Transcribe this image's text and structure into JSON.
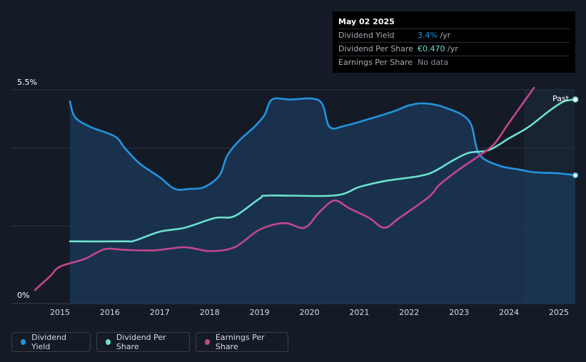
{
  "tooltip": {
    "date": "May 02 2025",
    "rows": [
      {
        "label": "Dividend Yield",
        "value": "3.4%",
        "unit": " /yr",
        "color": "#2394df"
      },
      {
        "label": "Dividend Per Share",
        "value": "€0.470",
        "unit": " /yr",
        "color": "#6de0d0"
      },
      {
        "label": "Earnings Per Share",
        "value": "No data",
        "unit": "",
        "color": "#8a919b"
      }
    ]
  },
  "past_label": "Past",
  "legend": [
    {
      "label": "Dividend Yield",
      "color": "#2394df"
    },
    {
      "label": "Dividend Per Share",
      "color": "#6de0d0"
    },
    {
      "label": "Earnings Per Share",
      "color": "#c3478c"
    }
  ],
  "chart_data": {
    "type": "line",
    "x_ticks": [
      "2015",
      "2016",
      "2017",
      "2018",
      "2019",
      "2020",
      "2021",
      "2022",
      "2023",
      "2024",
      "2025"
    ],
    "y_ticks": [
      "5.5%",
      "0%"
    ],
    "ylim": [
      0,
      5.5
    ],
    "xlim": [
      2014.5,
      2025.33
    ],
    "grid": true,
    "series": [
      {
        "name": "Dividend Yield",
        "color": "#2394df",
        "filled": true,
        "points": [
          [
            2015.2,
            5.2
          ],
          [
            2015.3,
            4.8
          ],
          [
            2015.6,
            4.55
          ],
          [
            2016.1,
            4.3
          ],
          [
            2016.3,
            4.0
          ],
          [
            2016.6,
            3.6
          ],
          [
            2017.0,
            3.25
          ],
          [
            2017.3,
            2.95
          ],
          [
            2017.6,
            2.95
          ],
          [
            2017.9,
            3.0
          ],
          [
            2018.2,
            3.3
          ],
          [
            2018.35,
            3.8
          ],
          [
            2018.6,
            4.2
          ],
          [
            2018.9,
            4.55
          ],
          [
            2019.1,
            4.85
          ],
          [
            2019.25,
            5.25
          ],
          [
            2019.6,
            5.25
          ],
          [
            2020.2,
            5.22
          ],
          [
            2020.4,
            4.55
          ],
          [
            2020.7,
            4.57
          ],
          [
            2021.2,
            4.75
          ],
          [
            2021.7,
            4.95
          ],
          [
            2022.0,
            5.1
          ],
          [
            2022.3,
            5.15
          ],
          [
            2022.7,
            5.05
          ],
          [
            2023.2,
            4.7
          ],
          [
            2023.4,
            3.85
          ],
          [
            2023.8,
            3.55
          ],
          [
            2024.2,
            3.45
          ],
          [
            2024.5,
            3.38
          ],
          [
            2025.0,
            3.35
          ],
          [
            2025.33,
            3.3
          ]
        ]
      },
      {
        "name": "Dividend Per Share",
        "color": "#6de0d0",
        "filled": false,
        "points": [
          [
            2015.2,
            1.6
          ],
          [
            2016.3,
            1.6
          ],
          [
            2016.5,
            1.62
          ],
          [
            2017.0,
            1.85
          ],
          [
            2017.5,
            1.95
          ],
          [
            2018.1,
            2.2
          ],
          [
            2018.5,
            2.25
          ],
          [
            2019.0,
            2.7
          ],
          [
            2019.2,
            2.78
          ],
          [
            2020.5,
            2.78
          ],
          [
            2021.0,
            3.0
          ],
          [
            2021.5,
            3.15
          ],
          [
            2022.2,
            3.28
          ],
          [
            2022.5,
            3.4
          ],
          [
            2022.9,
            3.7
          ],
          [
            2023.2,
            3.88
          ],
          [
            2023.6,
            3.95
          ],
          [
            2024.0,
            4.25
          ],
          [
            2024.4,
            4.55
          ],
          [
            2024.8,
            4.95
          ],
          [
            2025.1,
            5.2
          ],
          [
            2025.33,
            5.25
          ]
        ]
      },
      {
        "name": "Earnings Per Share",
        "color": "#c3478c",
        "filled": false,
        "points": [
          [
            2014.5,
            0.35
          ],
          [
            2014.8,
            0.7
          ],
          [
            2015.0,
            0.95
          ],
          [
            2015.5,
            1.15
          ],
          [
            2015.9,
            1.4
          ],
          [
            2016.3,
            1.38
          ],
          [
            2016.9,
            1.37
          ],
          [
            2017.5,
            1.45
          ],
          [
            2018.0,
            1.35
          ],
          [
            2018.5,
            1.45
          ],
          [
            2019.0,
            1.9
          ],
          [
            2019.5,
            2.07
          ],
          [
            2019.9,
            1.95
          ],
          [
            2020.2,
            2.35
          ],
          [
            2020.5,
            2.65
          ],
          [
            2020.8,
            2.45
          ],
          [
            2021.2,
            2.2
          ],
          [
            2021.5,
            1.95
          ],
          [
            2021.8,
            2.2
          ],
          [
            2022.4,
            2.75
          ],
          [
            2022.6,
            3.05
          ],
          [
            2023.0,
            3.45
          ],
          [
            2023.4,
            3.8
          ],
          [
            2023.7,
            4.1
          ],
          [
            2024.0,
            4.65
          ],
          [
            2024.5,
            5.55
          ]
        ]
      }
    ]
  }
}
